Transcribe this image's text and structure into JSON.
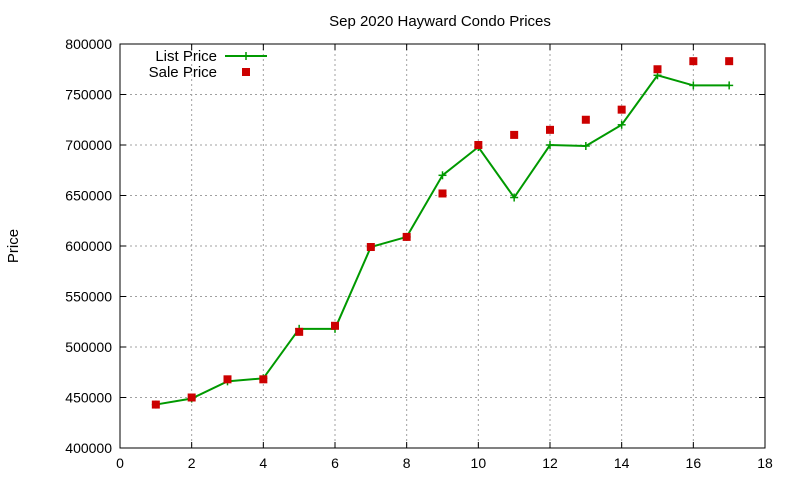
{
  "chart_data": {
    "type": "line",
    "title": "Sep 2020 Hayward Condo Prices",
    "xlabel": "",
    "ylabel": "Price",
    "xlim": [
      0,
      18
    ],
    "ylim": [
      400000,
      800000
    ],
    "x_ticks": [
      "0",
      "2",
      "4",
      "6",
      "8",
      "10",
      "12",
      "14",
      "16",
      "18"
    ],
    "y_ticks": [
      "400000",
      "450000",
      "500000",
      "550000",
      "600000",
      "650000",
      "700000",
      "750000",
      "800000"
    ],
    "grid": true,
    "legend_position": "top-left",
    "series": [
      {
        "name": "List Price",
        "style": "line-with-plus-markers",
        "color": "#009900",
        "x": [
          1,
          2,
          3,
          4,
          5,
          6,
          7,
          8,
          9,
          10,
          11,
          12,
          13,
          14,
          15,
          16,
          17
        ],
        "y": [
          443000,
          449000,
          466000,
          469000,
          518000,
          518000,
          599000,
          609000,
          670000,
          698000,
          648000,
          700000,
          699000,
          720000,
          769000,
          759000,
          759000
        ]
      },
      {
        "name": "Sale Price",
        "style": "square-markers",
        "color": "#cc0000",
        "x": [
          1,
          2,
          3,
          4,
          5,
          6,
          7,
          8,
          9,
          10,
          11,
          12,
          13,
          14,
          15,
          16,
          17
        ],
        "y": [
          443000,
          450000,
          468000,
          468000,
          515000,
          521000,
          599000,
          609000,
          652000,
          700000,
          710000,
          715000,
          725000,
          735000,
          775000,
          783000,
          783000
        ]
      }
    ]
  }
}
